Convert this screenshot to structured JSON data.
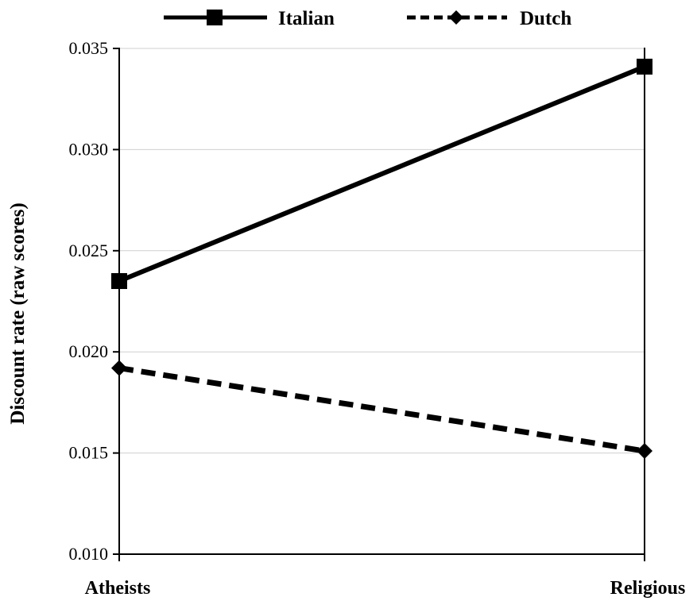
{
  "chart_data": {
    "type": "line",
    "title": "",
    "xlabel": "",
    "ylabel": "Discount rate (raw scores)",
    "categories": [
      "Atheists",
      "Religious"
    ],
    "ylim": [
      0.01,
      0.035
    ],
    "yticks": [
      "0.010",
      "0.015",
      "0.020",
      "0.025",
      "0.030",
      "0.035"
    ],
    "grid": true,
    "legend_position": "top",
    "series": [
      {
        "name": "Italian",
        "values": [
          0.0235,
          0.0341
        ],
        "line": "solid",
        "marker": "square",
        "color": "#000000"
      },
      {
        "name": "Dutch",
        "values": [
          0.0192,
          0.0151
        ],
        "line": "dashed",
        "marker": "diamond",
        "color": "#000000"
      }
    ]
  }
}
